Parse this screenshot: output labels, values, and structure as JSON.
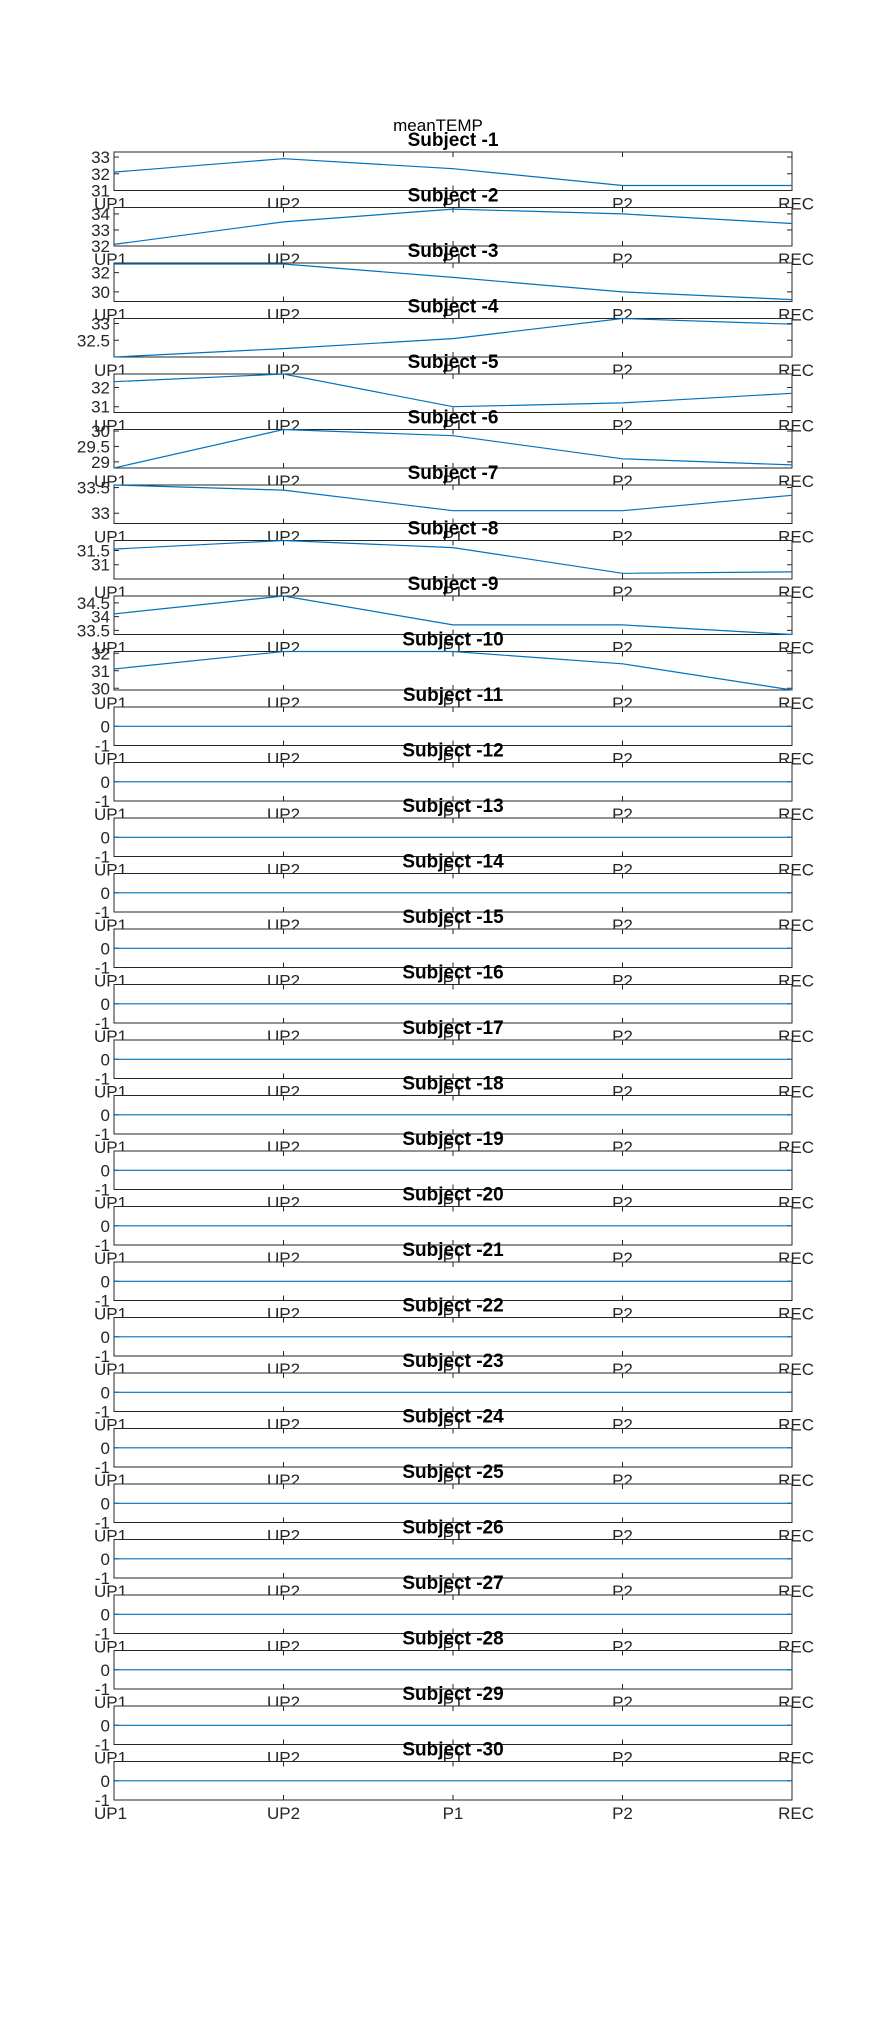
{
  "figure": {
    "title": "meanTEMP"
  },
  "colors": {
    "series": "#0072BD",
    "axis": "#262626"
  },
  "chart_data": {
    "type": "line",
    "title": "meanTEMP",
    "categories": [
      "UP1",
      "UP2",
      "P1",
      "P2",
      "REC"
    ],
    "subplots": [
      {
        "title": "Subject -1",
        "yticks": [
          "31",
          "32",
          "33"
        ],
        "ylim": [
          31,
          33.3
        ],
        "values": [
          32.1,
          32.9,
          32.3,
          31.3,
          31.3
        ]
      },
      {
        "title": "Subject -2",
        "yticks": [
          "32",
          "33",
          "34"
        ],
        "ylim": [
          32,
          34.4
        ],
        "values": [
          32.1,
          33.5,
          34.3,
          34.0,
          33.4
        ]
      },
      {
        "title": "Subject -3",
        "yticks": [
          "30",
          "32"
        ],
        "ylim": [
          29,
          33
        ],
        "values": [
          32.9,
          32.9,
          31.5,
          30.0,
          29.2
        ]
      },
      {
        "title": "Subject -4",
        "yticks": [
          "32.5",
          "33"
        ],
        "ylim": [
          32,
          33.15
        ],
        "values": [
          32.0,
          32.25,
          32.55,
          33.15,
          32.98
        ]
      },
      {
        "title": "Subject -5",
        "yticks": [
          "31",
          "32"
        ],
        "ylim": [
          30.7,
          32.7
        ],
        "values": [
          32.3,
          32.7,
          31.0,
          31.2,
          31.7
        ]
      },
      {
        "title": "Subject -6",
        "yticks": [
          "29",
          "29.5",
          "30"
        ],
        "ylim": [
          28.8,
          30.05
        ],
        "values": [
          28.8,
          30.05,
          29.85,
          29.1,
          28.9
        ]
      },
      {
        "title": "Subject -7",
        "yticks": [
          "33",
          "33.5"
        ],
        "ylim": [
          32.8,
          33.55
        ],
        "values": [
          33.55,
          33.45,
          33.05,
          33.05,
          33.35
        ]
      },
      {
        "title": "Subject -8",
        "yticks": [
          "31",
          "31.5"
        ],
        "ylim": [
          30.5,
          31.85
        ],
        "values": [
          31.55,
          31.85,
          31.6,
          30.7,
          30.75
        ]
      },
      {
        "title": "Subject -9",
        "yticks": [
          "33.5",
          "34",
          "34.5"
        ],
        "ylim": [
          33.35,
          34.75
        ],
        "values": [
          34.1,
          34.75,
          33.7,
          33.7,
          33.35
        ]
      },
      {
        "title": "Subject -10",
        "yticks": [
          "30",
          "31",
          "32"
        ],
        "ylim": [
          29.9,
          32.1
        ],
        "values": [
          31.1,
          32.1,
          32.1,
          31.4,
          29.9
        ]
      },
      {
        "title": "Subject -11",
        "yticks": [
          "-1",
          "0"
        ],
        "ylim": [
          -1,
          1
        ],
        "values": [
          0,
          0,
          0,
          0,
          0
        ]
      },
      {
        "title": "Subject -12",
        "yticks": [
          "-1",
          "0"
        ],
        "ylim": [
          -1,
          1
        ],
        "values": [
          0,
          0,
          0,
          0,
          0
        ]
      },
      {
        "title": "Subject -13",
        "yticks": [
          "-1",
          "0"
        ],
        "ylim": [
          -1,
          1
        ],
        "values": [
          0,
          0,
          0,
          0,
          0
        ]
      },
      {
        "title": "Subject -14",
        "yticks": [
          "-1",
          "0"
        ],
        "ylim": [
          -1,
          1
        ],
        "values": [
          0,
          0,
          0,
          0,
          0
        ]
      },
      {
        "title": "Subject -15",
        "yticks": [
          "-1",
          "0"
        ],
        "ylim": [
          -1,
          1
        ],
        "values": [
          0,
          0,
          0,
          0,
          0
        ]
      },
      {
        "title": "Subject -16",
        "yticks": [
          "-1",
          "0"
        ],
        "ylim": [
          -1,
          1
        ],
        "values": [
          0,
          0,
          0,
          0,
          0
        ]
      },
      {
        "title": "Subject -17",
        "yticks": [
          "-1",
          "0"
        ],
        "ylim": [
          -1,
          1
        ],
        "values": [
          0,
          0,
          0,
          0,
          0
        ]
      },
      {
        "title": "Subject -18",
        "yticks": [
          "-1",
          "0"
        ],
        "ylim": [
          -1,
          1
        ],
        "values": [
          0,
          0,
          0,
          0,
          0
        ]
      },
      {
        "title": "Subject -19",
        "yticks": [
          "-1",
          "0"
        ],
        "ylim": [
          -1,
          1
        ],
        "values": [
          0,
          0,
          0,
          0,
          0
        ]
      },
      {
        "title": "Subject -20",
        "yticks": [
          "-1",
          "0"
        ],
        "ylim": [
          -1,
          1
        ],
        "values": [
          0,
          0,
          0,
          0,
          0
        ]
      },
      {
        "title": "Subject -21",
        "yticks": [
          "-1",
          "0"
        ],
        "ylim": [
          -1,
          1
        ],
        "values": [
          0,
          0,
          0,
          0,
          0
        ]
      },
      {
        "title": "Subject -22",
        "yticks": [
          "-1",
          "0"
        ],
        "ylim": [
          -1,
          1
        ],
        "values": [
          0,
          0,
          0,
          0,
          0
        ]
      },
      {
        "title": "Subject -23",
        "yticks": [
          "-1",
          "0"
        ],
        "ylim": [
          -1,
          1
        ],
        "values": [
          0,
          0,
          0,
          0,
          0
        ]
      },
      {
        "title": "Subject -24",
        "yticks": [
          "-1",
          "0"
        ],
        "ylim": [
          -1,
          1
        ],
        "values": [
          0,
          0,
          0,
          0,
          0
        ]
      },
      {
        "title": "Subject -25",
        "yticks": [
          "-1",
          "0"
        ],
        "ylim": [
          -1,
          1
        ],
        "values": [
          0,
          0,
          0,
          0,
          0
        ]
      },
      {
        "title": "Subject -26",
        "yticks": [
          "-1",
          "0"
        ],
        "ylim": [
          -1,
          1
        ],
        "values": [
          0,
          0,
          0,
          0,
          0
        ]
      },
      {
        "title": "Subject -27",
        "yticks": [
          "-1",
          "0"
        ],
        "ylim": [
          -1,
          1
        ],
        "values": [
          0,
          0,
          0,
          0,
          0
        ]
      },
      {
        "title": "Subject -28",
        "yticks": [
          "-1",
          "0"
        ],
        "ylim": [
          -1,
          1
        ],
        "values": [
          0,
          0,
          0,
          0,
          0
        ]
      },
      {
        "title": "Subject -29",
        "yticks": [
          "-1",
          "0"
        ],
        "ylim": [
          -1,
          1
        ],
        "values": [
          0,
          0,
          0,
          0,
          0
        ]
      },
      {
        "title": "Subject -30",
        "yticks": [
          "-1",
          "0"
        ],
        "ylim": [
          -1,
          1
        ],
        "values": [
          0,
          0,
          0,
          0,
          0
        ]
      }
    ]
  }
}
